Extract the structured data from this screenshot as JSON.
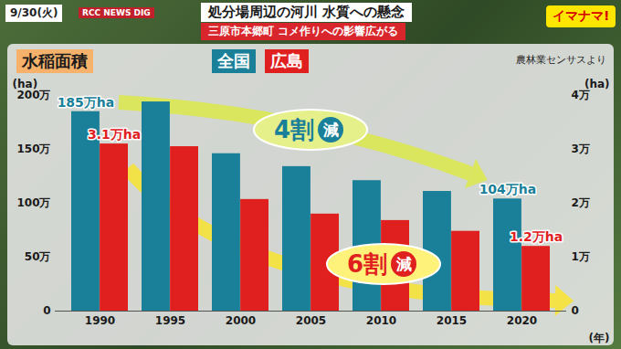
{
  "header": {
    "date": "9/30(火)",
    "brand": "RCC NEWS DIG",
    "headline": "処分場周辺の河川 水質への懸念",
    "subheadline": "三原市本郷町 コメ作りへの影響広がる",
    "program": "イマナマ!"
  },
  "chart_data": {
    "type": "bar",
    "title": "水稲面積",
    "source": "農林業センサスより",
    "categories": [
      "1990",
      "1995",
      "2000",
      "2005",
      "2010",
      "2015",
      "2020"
    ],
    "xlabel": "(年)",
    "ylabel": "(ha)",
    "y2label": "(ha)",
    "series": [
      {
        "name": "全国",
        "color": "#1a7f98",
        "values": [
          1850000,
          1940000,
          1460000,
          1340000,
          1210000,
          1110000,
          1040000
        ],
        "value_labels": [
          "185万ha",
          null,
          null,
          null,
          null,
          null,
          "104万ha"
        ]
      },
      {
        "name": "広島",
        "color": "#e0201f",
        "axis": "y2",
        "values": [
          31000,
          30500,
          20700,
          18000,
          16800,
          14800,
          12000
        ],
        "value_labels": [
          "3.1万ha",
          null,
          null,
          null,
          null,
          null,
          "1.2万ha"
        ]
      }
    ],
    "ylim": [
      0,
      2000000
    ],
    "yticks": [
      0,
      {
        "value": 500000,
        "label": "50万"
      },
      {
        "value": 1000000,
        "label": "100万"
      },
      {
        "value": 1500000,
        "label": "150万"
      },
      {
        "value": 2000000,
        "label": "200万"
      }
    ],
    "y2lim": [
      0,
      40000
    ],
    "y2ticks": [
      0,
      {
        "value": 10000,
        "label": "1万"
      },
      {
        "value": 20000,
        "label": "2万"
      },
      {
        "value": 30000,
        "label": "3万"
      },
      {
        "value": 40000,
        "label": "4万"
      }
    ],
    "annotations": [
      {
        "text": "4割減",
        "series": "全国"
      },
      {
        "text": "6割減",
        "series": "広島"
      }
    ],
    "legend": "top",
    "grid": false,
    "data_labels": true
  }
}
